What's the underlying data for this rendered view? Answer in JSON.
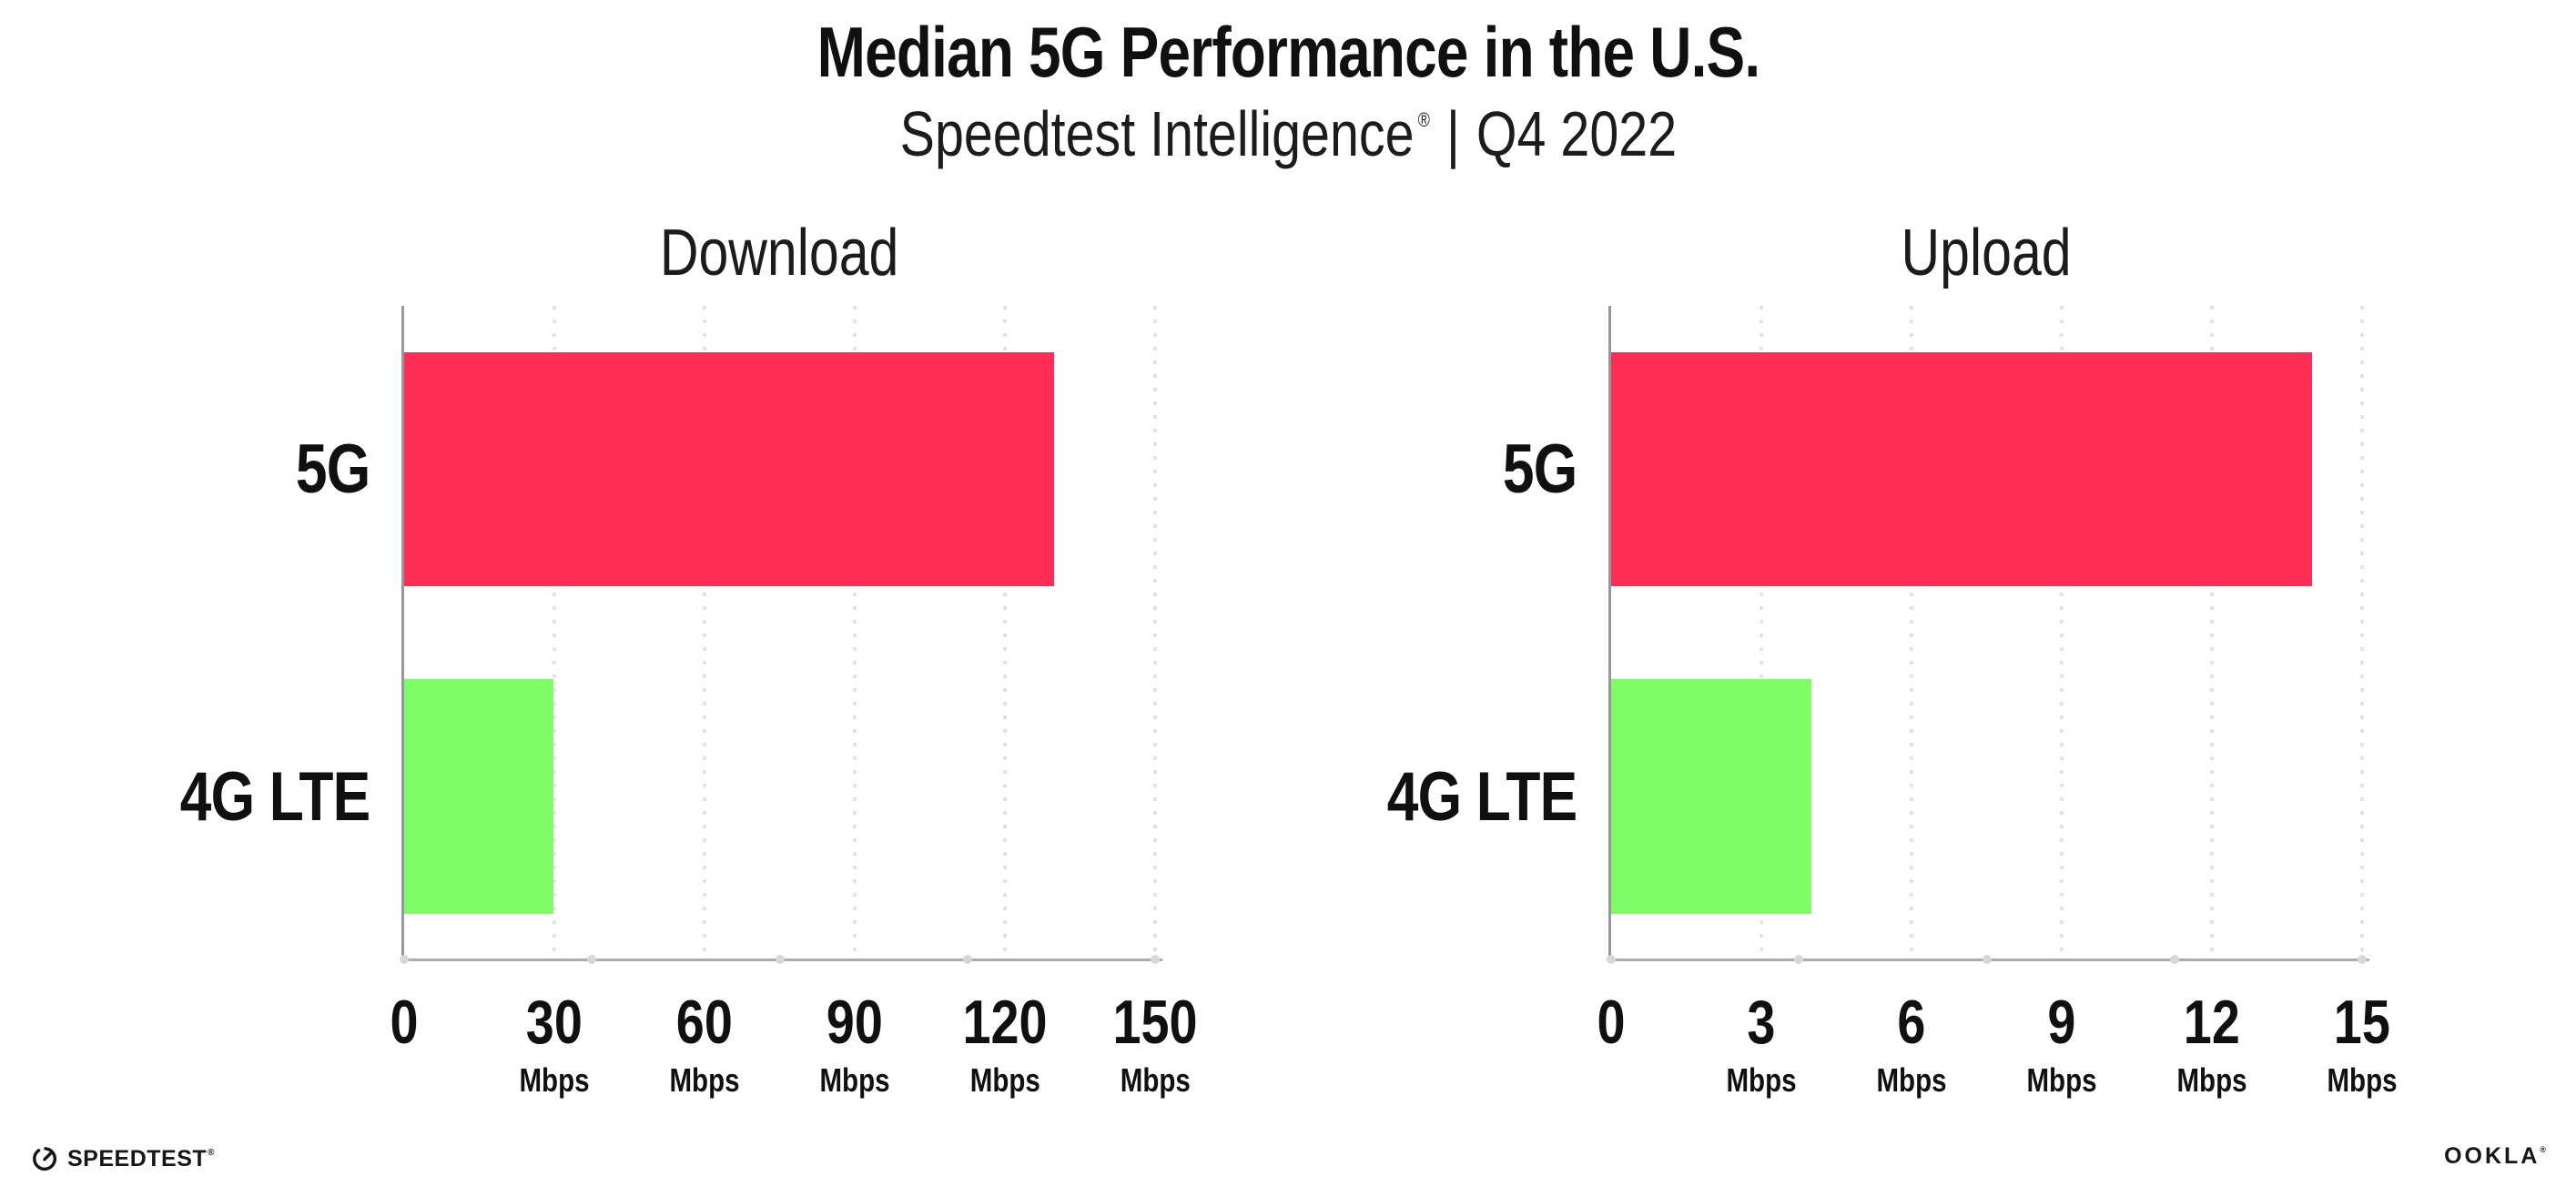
{
  "header": {
    "title": "Median 5G Performance in the U.S.",
    "subtitle_brand": "Speedtest Intelligence",
    "subtitle_reg": "®",
    "subtitle_sep": "|",
    "subtitle_period": "Q4 2022"
  },
  "chart_data": [
    {
      "type": "bar",
      "orientation": "horizontal",
      "title": "Download",
      "categories": [
        "5G",
        "4G LTE"
      ],
      "values": [
        129.8,
        29.9
      ],
      "unit": "Mbps",
      "xlim": [
        0,
        150
      ],
      "xticks": [
        0,
        30,
        60,
        90,
        120,
        150
      ],
      "bar_colors": [
        "#FD2D55",
        "#7EFD66"
      ],
      "grid": "dotted-vertical",
      "legend": "none"
    },
    {
      "type": "bar",
      "orientation": "horizontal",
      "title": "Upload",
      "categories": [
        "5G",
        "4G LTE"
      ],
      "values": [
        14.0,
        4.0
      ],
      "unit": "Mbps",
      "xlim": [
        0,
        15
      ],
      "xticks": [
        0,
        3,
        6,
        9,
        12,
        15
      ],
      "bar_colors": [
        "#FD2D55",
        "#7EFD66"
      ],
      "grid": "dotted-vertical",
      "legend": "none"
    }
  ],
  "colors": {
    "bar_5g": "#FD2D55",
    "bar_4g_lte": "#7EFD66",
    "axis_line": "#97979d",
    "gridline": "#e2e2eb",
    "text": "#101010",
    "background": "#ffffff"
  },
  "footer": {
    "speedtest_label": "SPEEDTEST",
    "speedtest_reg": "®",
    "ookla_label": "OOKLA",
    "ookla_reg": "®"
  }
}
